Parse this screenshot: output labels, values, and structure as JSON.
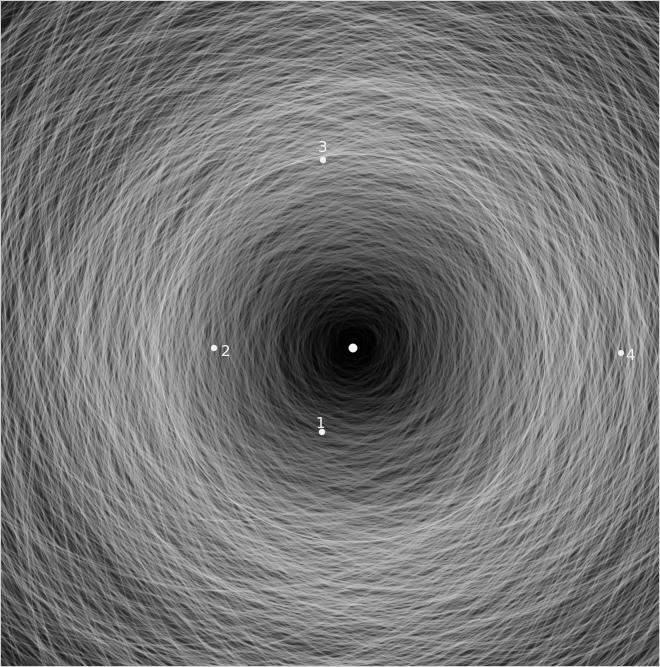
{
  "image": {
    "background_color": "#2b2b2b",
    "orbit_line_color": "#d6d6d6",
    "center_color": "#050505"
  },
  "bodies": [
    {
      "label": "1"
    },
    {
      "label": "2"
    },
    {
      "label": "3"
    },
    {
      "label": "4"
    }
  ]
}
